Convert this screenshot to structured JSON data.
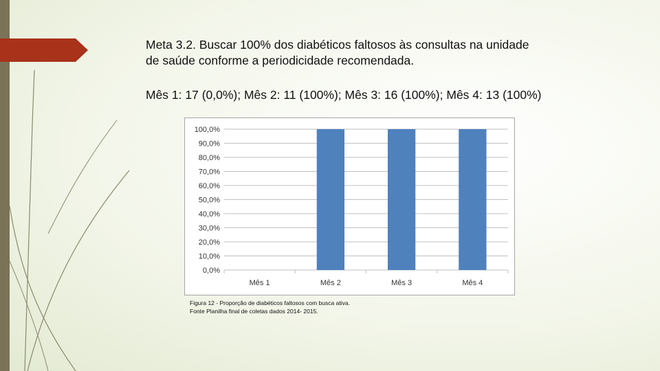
{
  "slide": {
    "title_line1": "Meta 3.2. Buscar 100% dos diabéticos faltosos às consultas na unidade",
    "title_line2": "de saúde conforme a periodicidade recomendada.",
    "summary": "Mês 1: 17 (0,0%); Mês 2: 11 (100%); Mês 3: 16 (100%); Mês 4: 13 (100%)",
    "caption_line1": "Figura 12 - Proporção de diabéticos faltosos com busca ativa.",
    "caption_line2": "Fonte Planilha final de coletas dados 2014- 2015."
  },
  "colors": {
    "bar": "#4f81bd",
    "accent": "#a8321a",
    "sidebar": "#7a7358"
  },
  "chart_data": {
    "type": "bar",
    "categories": [
      "Mês 1",
      "Mês 2",
      "Mês 3",
      "Mês 4"
    ],
    "values": [
      0,
      100,
      100,
      100
    ],
    "yticks": [
      "0,0%",
      "10,0%",
      "20,0%",
      "30,0%",
      "40,0%",
      "50,0%",
      "60,0%",
      "70,0%",
      "80,0%",
      "90,0%",
      "100,0%"
    ],
    "ylim": [
      0,
      100
    ],
    "grid": true,
    "title": "",
    "xlabel": "",
    "ylabel": ""
  }
}
